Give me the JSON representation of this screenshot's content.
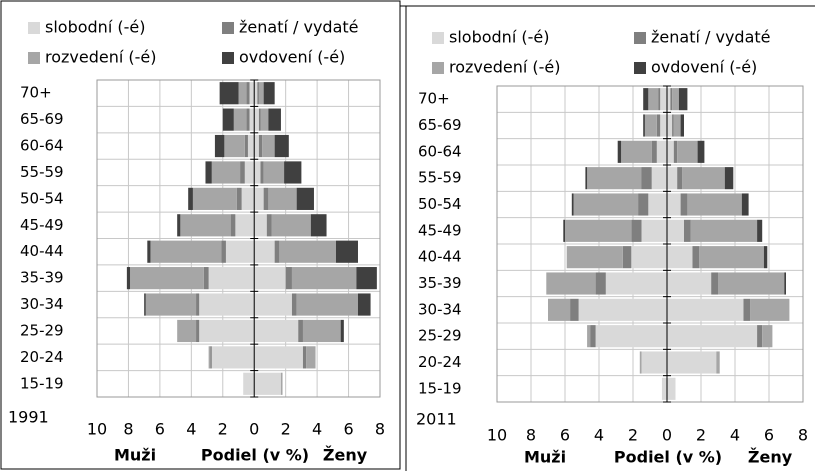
{
  "chart_data": [
    {
      "type": "pyramid",
      "annotation": "1991",
      "left_label": "Muži",
      "x_label": "Podiel (v %)",
      "right_label": "Ženy",
      "categories": [
        "15-19",
        "20-24",
        "25-29",
        "30-34",
        "35-39",
        "40-44",
        "45-49",
        "50-54",
        "55-59",
        "60-64",
        "65-69",
        "70+"
      ],
      "series": [
        {
          "name": "slobodní (-é)",
          "color": "#d9d9d9",
          "men": [
            0.7,
            2.7,
            3.5,
            3.5,
            2.9,
            1.8,
            1.2,
            0.8,
            0.6,
            0.4,
            0.3,
            0.3
          ],
          "women": [
            1.7,
            3.1,
            2.8,
            2.4,
            2.0,
            1.3,
            0.8,
            0.6,
            0.4,
            0.3,
            0.3,
            0.2
          ]
        },
        {
          "name": "ženatí / vydaté",
          "color": "#7f7f7f",
          "men": [
            0,
            0.1,
            0.2,
            0.2,
            0.3,
            0.3,
            0.3,
            0.3,
            0.3,
            0.2,
            0.2,
            0.2
          ],
          "women": [
            0,
            0.2,
            0.3,
            0.3,
            0.4,
            0.3,
            0.3,
            0.3,
            0.2,
            0.2,
            0.1,
            0.1
          ]
        },
        {
          "name": "rozvedení (-é)",
          "color": "#a6a6a6",
          "men": [
            0,
            0.1,
            1.2,
            3.2,
            4.7,
            4.5,
            3.2,
            2.8,
            1.8,
            1.3,
            0.8,
            0.5
          ],
          "women": [
            0.1,
            0.6,
            2.4,
            3.9,
            4.1,
            3.6,
            2.5,
            1.8,
            1.3,
            0.8,
            0.5,
            0.3
          ]
        },
        {
          "name": "ovdovení (-é)",
          "color": "#404040",
          "men": [
            0,
            0,
            0,
            0.1,
            0.2,
            0.2,
            0.2,
            0.3,
            0.4,
            0.6,
            0.7,
            1.2
          ],
          "women": [
            0,
            0,
            0.2,
            0.8,
            1.3,
            1.4,
            1.0,
            1.1,
            1.1,
            0.9,
            0.8,
            0.7
          ]
        }
      ],
      "xlim": [
        -10,
        8
      ],
      "xticks": [
        {
          "value": -10,
          "label": "10"
        },
        {
          "value": -8,
          "label": "8"
        },
        {
          "value": -6,
          "label": "6"
        },
        {
          "value": -4,
          "label": "4"
        },
        {
          "value": -2,
          "label": "2"
        },
        0,
        2,
        4,
        6,
        8
      ],
      "grid": true
    },
    {
      "type": "pyramid",
      "annotation": "2011",
      "left_label": "Muži",
      "x_label": "Podiel (v %)",
      "right_label": "Ženy",
      "categories": [
        "15-19",
        "20-24",
        "25-29",
        "30-34",
        "35-39",
        "40-44",
        "45-49",
        "50-54",
        "55-59",
        "60-64",
        "65-69",
        "70+"
      ],
      "series": [
        {
          "name": "slobodní (-é)",
          "color": "#d9d9d9",
          "men": [
            0.3,
            1.5,
            4.2,
            5.2,
            3.6,
            2.1,
            1.5,
            1.1,
            0.9,
            0.6,
            0.4,
            0.4
          ],
          "women": [
            0.5,
            2.9,
            5.3,
            4.5,
            2.6,
            1.5,
            1.0,
            0.8,
            0.6,
            0.4,
            0.3,
            0.2
          ]
        },
        {
          "name": "ženatí / vydaté",
          "color": "#7f7f7f",
          "men": [
            0,
            0,
            0.3,
            0.5,
            0.6,
            0.5,
            0.6,
            0.6,
            0.6,
            0.3,
            0.2,
            0.1
          ],
          "women": [
            0,
            0,
            0.3,
            0.4,
            0.4,
            0.4,
            0.4,
            0.4,
            0.3,
            0.2,
            0.1,
            0.1
          ]
        },
        {
          "name": "rozvedení (-é)",
          "color": "#a6a6a6",
          "men": [
            0,
            0.1,
            0.2,
            1.3,
            2.9,
            3.3,
            3.9,
            3.8,
            3.2,
            1.8,
            0.7,
            0.6
          ],
          "women": [
            0,
            0.2,
            0.6,
            2.3,
            3.9,
            3.8,
            3.9,
            3.2,
            2.5,
            1.2,
            0.4,
            0.4
          ]
        },
        {
          "name": "ovdovení (-é)",
          "color": "#404040",
          "men": [
            0,
            0,
            0,
            0,
            0,
            0,
            0.1,
            0.1,
            0.1,
            0.2,
            0.1,
            0.3
          ],
          "women": [
            0,
            0,
            0,
            0,
            0.1,
            0.2,
            0.3,
            0.4,
            0.5,
            0.4,
            0.2,
            0.5
          ]
        }
      ],
      "xlim": [
        -10,
        8
      ],
      "xticks": [
        {
          "value": -10,
          "label": "10"
        },
        {
          "value": -8,
          "label": "8"
        },
        {
          "value": -6,
          "label": "6"
        },
        {
          "value": -4,
          "label": "4"
        },
        {
          "value": -2,
          "label": "2"
        },
        0,
        2,
        4,
        6,
        8
      ],
      "grid": true
    }
  ]
}
